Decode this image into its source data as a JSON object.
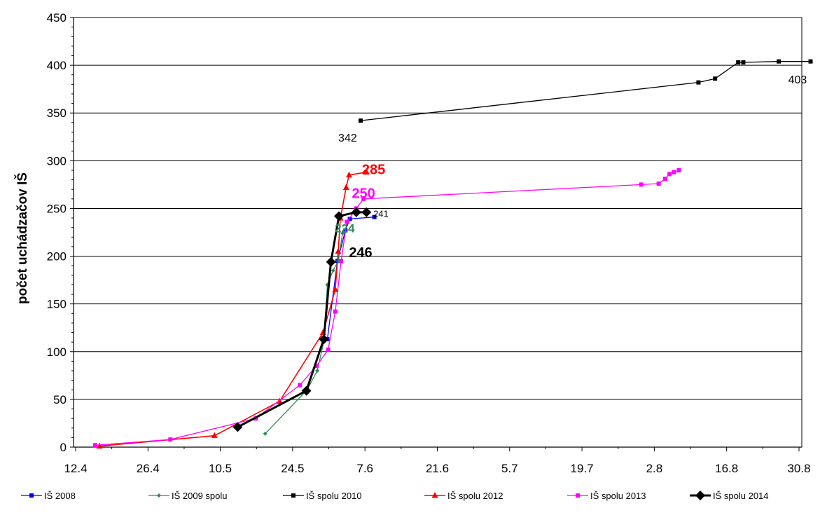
{
  "chart_data": {
    "type": "line",
    "title": "",
    "xlabel": "",
    "ylabel": "počet uchádzačov IŠ",
    "ylim": [
      0,
      450
    ],
    "yticks": [
      0,
      50,
      100,
      150,
      200,
      250,
      300,
      350,
      400,
      450
    ],
    "x_tick_labels": [
      "12.4",
      "26.4",
      "10.5",
      "24.5",
      "7.6",
      "21.6",
      "5.7",
      "19.7",
      "2.8",
      "16.8",
      "30.8"
    ],
    "x_tick_positions": [
      0,
      1,
      2,
      3,
      4,
      5,
      6,
      7,
      8,
      9,
      10
    ],
    "grid": "horizontal",
    "legend_position": "bottom",
    "series": [
      {
        "name": "IŠ 2008",
        "color": "#0000ff",
        "line_width": 1.3,
        "marker": "square",
        "points": [
          [
            3.48,
            113
          ],
          [
            3.62,
            195
          ],
          [
            3.73,
            227
          ],
          [
            3.79,
            239
          ],
          [
            4.13,
            241
          ]
        ]
      },
      {
        "name": "IŠ 2009 spolu",
        "color": "#2e8b57",
        "line_width": 1.3,
        "marker": "diamond",
        "points": [
          [
            2.62,
            14
          ],
          [
            3.2,
            60
          ],
          [
            3.34,
            80
          ],
          [
            3.43,
            110
          ],
          [
            3.48,
            170
          ],
          [
            3.56,
            185
          ],
          [
            3.63,
            195
          ],
          [
            3.69,
            224
          ]
        ]
      },
      {
        "name": "IŠ spolu  2010",
        "color": "#000000",
        "line_width": 1.3,
        "marker": "square",
        "points": [
          [
            3.94,
            342
          ],
          [
            8.61,
            382
          ],
          [
            8.84,
            386
          ],
          [
            9.16,
            403
          ],
          [
            9.23,
            403
          ],
          [
            9.72,
            404
          ],
          [
            10.16,
            404
          ]
        ]
      },
      {
        "name": "IŠ spolu  2012",
        "color": "#ff0000",
        "line_width": 1.6,
        "marker": "triangle",
        "points": [
          [
            0.33,
            1
          ],
          [
            1.92,
            12
          ],
          [
            2.82,
            48
          ],
          [
            3.42,
            120
          ],
          [
            3.59,
            165
          ],
          [
            3.63,
            205
          ],
          [
            3.66,
            240
          ],
          [
            3.74,
            272
          ],
          [
            3.78,
            285
          ],
          [
            4.02,
            288
          ]
        ]
      },
      {
        "name": "IŠ spolu  2013",
        "color": "#ff00ff",
        "line_width": 1.3,
        "marker": "square",
        "points": [
          [
            0.27,
            2
          ],
          [
            1.31,
            8
          ],
          [
            2.49,
            30
          ],
          [
            3.1,
            65
          ],
          [
            3.33,
            85
          ],
          [
            3.49,
            102
          ],
          [
            3.59,
            142
          ],
          [
            3.67,
            195
          ],
          [
            3.75,
            236
          ],
          [
            3.88,
            250
          ],
          [
            3.98,
            260
          ],
          [
            7.82,
            275
          ],
          [
            8.06,
            276
          ],
          [
            8.15,
            281
          ],
          [
            8.21,
            286
          ],
          [
            8.27,
            288
          ],
          [
            8.34,
            290
          ]
        ]
      },
      {
        "name": "IŠ spolu  2014",
        "color": "#000000",
        "line_width": 3,
        "marker": "bigdiamond",
        "points": [
          [
            2.24,
            21
          ],
          [
            3.19,
            59
          ],
          [
            3.43,
            113
          ],
          [
            3.53,
            194
          ],
          [
            3.64,
            242
          ],
          [
            3.88,
            246
          ],
          [
            4.02,
            246
          ]
        ]
      }
    ],
    "annotations": [
      {
        "text": "403",
        "color": "#000000",
        "size": 16,
        "bold": false,
        "x": 9.98,
        "y": 381
      },
      {
        "text": "342",
        "color": "#000000",
        "size": 16,
        "bold": false,
        "x": 3.76,
        "y": 320
      },
      {
        "text": "285",
        "color": "#ff0000",
        "size": 20,
        "bold": true,
        "x": 4.12,
        "y": 286
      },
      {
        "text": "250",
        "color": "#ff00ff",
        "size": 20,
        "bold": true,
        "x": 3.98,
        "y": 261
      },
      {
        "text": "241",
        "color": "#000000",
        "size": 13,
        "bold": false,
        "x": 4.22,
        "y": 241
      },
      {
        "text": "224",
        "color": "#2e8b57",
        "size": 17,
        "bold": true,
        "x": 3.72,
        "y": 225
      },
      {
        "text": "246",
        "color": "#000000",
        "size": 20,
        "bold": true,
        "x": 3.94,
        "y": 199
      }
    ]
  }
}
